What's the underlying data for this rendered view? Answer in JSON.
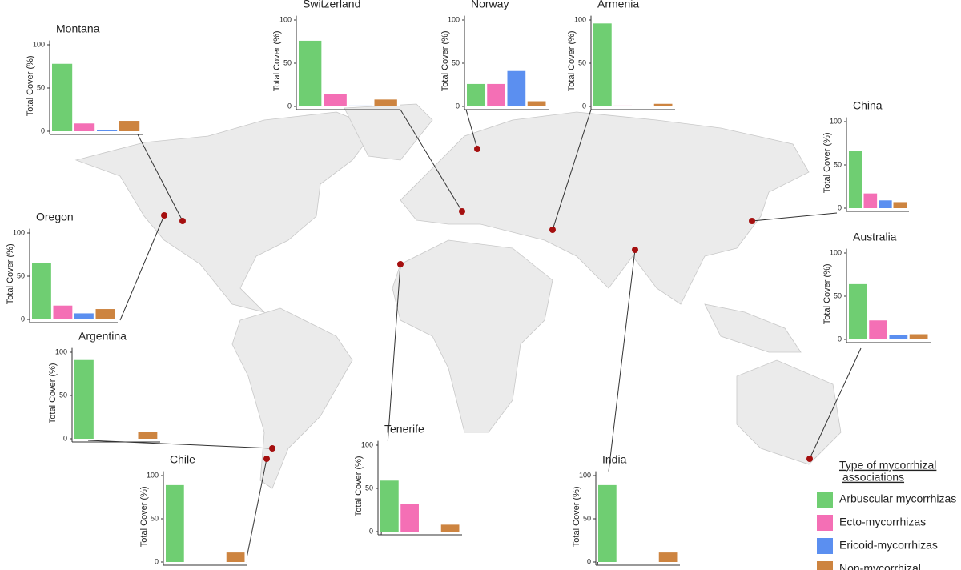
{
  "chart_data": [
    {
      "type": "bar",
      "title": "Montana",
      "ylabel": "Total Cover (%)",
      "values": [
        78,
        9,
        1,
        12
      ],
      "ylim": [
        0,
        105
      ],
      "yticks": [
        0,
        50,
        100
      ]
    },
    {
      "type": "bar",
      "title": "Switzerland",
      "ylabel": "Total Cover (%)",
      "values": [
        76,
        14,
        1,
        8
      ],
      "ylim": [
        0,
        105
      ],
      "yticks": [
        0,
        50,
        100
      ]
    },
    {
      "type": "bar",
      "title": "Norway",
      "ylabel": "Total Cover (%)",
      "values": [
        26,
        26,
        41,
        6
      ],
      "ylim": [
        0,
        105
      ],
      "yticks": [
        0,
        50,
        100
      ]
    },
    {
      "type": "bar",
      "title": "Armenia",
      "ylabel": "Total Cover (%)",
      "values": [
        96,
        1,
        0,
        3
      ],
      "ylim": [
        0,
        105
      ],
      "yticks": [
        0,
        50,
        100
      ]
    },
    {
      "type": "bar",
      "title": "China",
      "ylabel": "Total Cover (%)",
      "values": [
        66,
        17,
        9,
        7
      ],
      "ylim": [
        0,
        105
      ],
      "yticks": [
        0,
        50,
        100
      ]
    },
    {
      "type": "bar",
      "title": "Oregon",
      "ylabel": "Total Cover (%)",
      "values": [
        65,
        16,
        7,
        12
      ],
      "ylim": [
        0,
        105
      ],
      "yticks": [
        0,
        50,
        100
      ]
    },
    {
      "type": "bar",
      "title": "Australia",
      "ylabel": "Total Cover (%)",
      "values": [
        64,
        22,
        5,
        6
      ],
      "ylim": [
        0,
        105
      ],
      "yticks": [
        0,
        50,
        100
      ]
    },
    {
      "type": "bar",
      "title": "Argentina",
      "ylabel": "Total Cover (%)",
      "values": [
        91,
        0,
        0,
        8
      ],
      "ylim": [
        0,
        105
      ],
      "yticks": [
        0,
        50,
        100
      ]
    },
    {
      "type": "bar",
      "title": "Chile",
      "ylabel": "Total Cover (%)",
      "values": [
        89,
        0,
        0,
        11
      ],
      "ylim": [
        0,
        105
      ],
      "yticks": [
        0,
        50,
        100
      ]
    },
    {
      "type": "bar",
      "title": "Tenerife",
      "ylabel": "Total Cover (%)",
      "values": [
        59,
        32,
        0,
        8
      ],
      "ylim": [
        0,
        105
      ],
      "yticks": [
        0,
        50,
        100
      ]
    },
    {
      "type": "bar",
      "title": "India",
      "ylabel": "Total Cover (%)",
      "values": [
        89,
        0,
        0,
        11
      ],
      "ylim": [
        0,
        105
      ],
      "yticks": [
        0,
        50,
        100
      ]
    }
  ],
  "legend": {
    "title_lines": [
      "Type of mycorrhizal",
      "associations"
    ],
    "items": [
      {
        "name": "Arbuscular mycorrhizas",
        "color": "#6fce72"
      },
      {
        "name": "Ecto-mycorrhizas",
        "color": "#f46fb5"
      },
      {
        "name": "Ericoid-mycorrhizas",
        "color": "#5b8ff0"
      },
      {
        "name": "Non-mycorrhizal",
        "color": "#cd8440"
      }
    ]
  }
}
